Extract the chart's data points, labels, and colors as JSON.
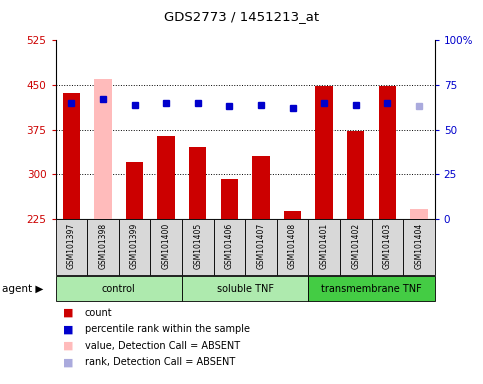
{
  "title": "GDS2773 / 1451213_at",
  "samples": [
    "GSM101397",
    "GSM101398",
    "GSM101399",
    "GSM101400",
    "GSM101405",
    "GSM101406",
    "GSM101407",
    "GSM101408",
    "GSM101401",
    "GSM101402",
    "GSM101403",
    "GSM101404"
  ],
  "counts": [
    437,
    460,
    320,
    365,
    345,
    292,
    330,
    238,
    448,
    372,
    448,
    242
  ],
  "ranks": [
    65,
    67,
    64,
    65,
    65,
    63,
    64,
    62,
    65,
    64,
    65,
    63
  ],
  "absent_value": [
    false,
    true,
    false,
    false,
    false,
    false,
    false,
    false,
    false,
    false,
    false,
    true
  ],
  "absent_rank": [
    false,
    false,
    false,
    false,
    false,
    false,
    false,
    false,
    false,
    false,
    false,
    true
  ],
  "ylim_left": [
    225,
    525
  ],
  "ylim_right": [
    0,
    100
  ],
  "yticks_left": [
    225,
    300,
    375,
    450,
    525
  ],
  "yticks_right": [
    0,
    25,
    50,
    75,
    100
  ],
  "ytick_labels_right": [
    "0",
    "25",
    "50",
    "75",
    "100%"
  ],
  "groups": [
    {
      "label": "control",
      "start": 0,
      "end": 4,
      "color": "#aeeaae"
    },
    {
      "label": "soluble TNF",
      "start": 4,
      "end": 8,
      "color": "#aeeaae"
    },
    {
      "label": "transmembrane TNF",
      "start": 8,
      "end": 12,
      "color": "#44cc44"
    }
  ],
  "bar_color_normal": "#cc0000",
  "bar_color_absent": "#ffbbbb",
  "rank_color_normal": "#0000cc",
  "rank_color_absent": "#aaaadd",
  "bar_width": 0.55,
  "dotted_line_color": "#000000",
  "legend_items": [
    {
      "label": "count",
      "color": "#cc0000"
    },
    {
      "label": "percentile rank within the sample",
      "color": "#0000cc"
    },
    {
      "label": "value, Detection Call = ABSENT",
      "color": "#ffbbbb"
    },
    {
      "label": "rank, Detection Call = ABSENT",
      "color": "#aaaadd"
    }
  ]
}
